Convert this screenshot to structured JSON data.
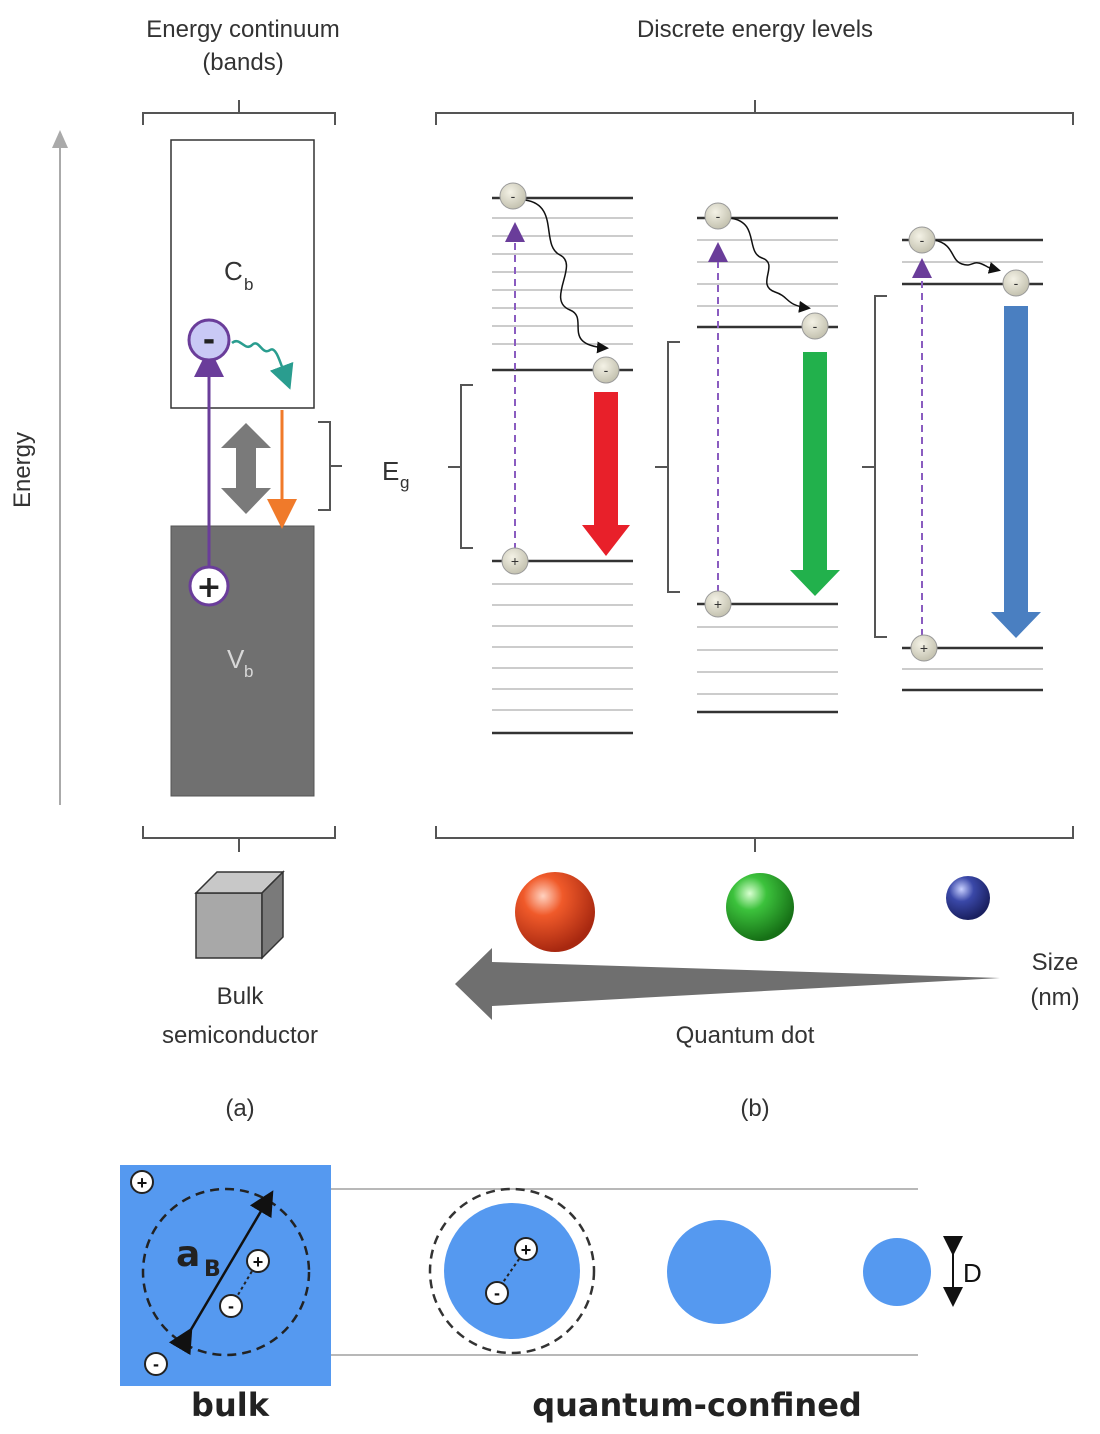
{
  "top_labels": {
    "continuum_line1": "Energy continuum",
    "continuum_line2": "(bands)",
    "discrete": "Discrete energy levels"
  },
  "axis": {
    "energy": "Energy"
  },
  "bulk_panel": {
    "conduction_band": "C",
    "conduction_band_sub": "b",
    "valence_band": "V",
    "valence_band_sub": "b",
    "electron_sign": "-",
    "hole_sign": "+"
  },
  "gap_label": {
    "main": "E",
    "sub": "g"
  },
  "bottom_labels": {
    "bulk_line1": "Bulk",
    "bulk_line2": "semiconductor",
    "quantum_dot": "Quantum dot",
    "size_line1": "Size",
    "size_line2": "(nm)",
    "panel_a": "(a)",
    "panel_b": "(b)"
  },
  "lower_figure": {
    "bohr_main": "a",
    "bohr_sub": "B",
    "diameter": "D",
    "bulk": "bulk",
    "confined": "quantum-confined"
  },
  "colors": {
    "red_emission": "#e8202a",
    "green_emission": "#22b14c",
    "blue_emission": "#4a7fc1",
    "bulk_blue": "#5599f0",
    "excite_purple": "#6a3d9a",
    "relax_teal": "#2a9d8f",
    "emit_orange": "#f07a2a"
  },
  "icons": [
    "electron-icon",
    "hole-icon",
    "cube-icon",
    "sphere-icon",
    "double-arrow-icon"
  ]
}
